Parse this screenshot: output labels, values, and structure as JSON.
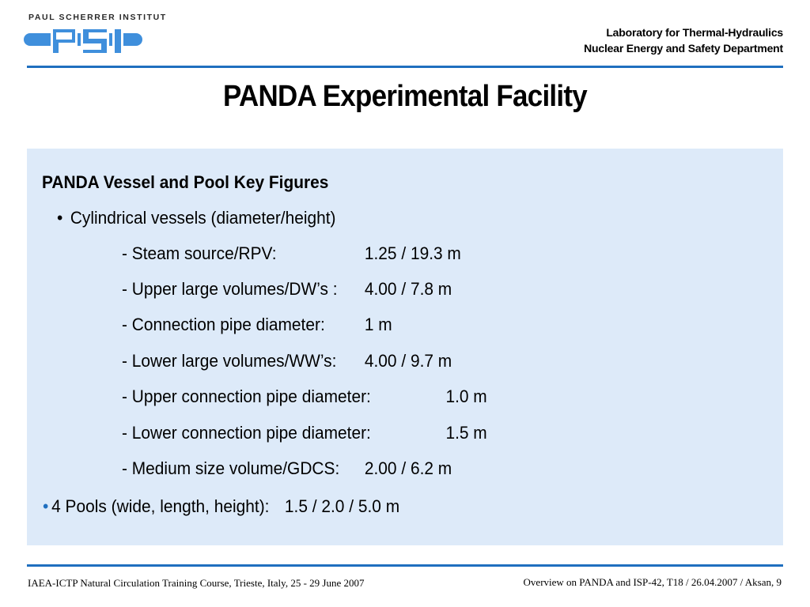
{
  "header": {
    "logo_caption": "PAUL SCHERRER INSTITUT",
    "logo_letters": "PSI",
    "lab": "Laboratory for Thermal-Hydraulics",
    "department": "Nuclear Energy and Safety Department"
  },
  "title": "PANDA Experimental Facility",
  "content": {
    "section_heading": "PANDA Vessel and Pool Key Figures",
    "bullet_marker": "•",
    "bullet_vessels": "Cylindrical vessels (diameter/height)",
    "rows": [
      {
        "label": "- Steam source/RPV:",
        "value": "1.25 / 19.3 m"
      },
      {
        "label": "- Upper large volumes/DW’s :",
        "value": "4.00 / 7.8 m"
      },
      {
        "label": "- Connection pipe diameter:",
        "value": "1 m"
      },
      {
        "label": "- Lower large volumes/WW’s:",
        "value": "4.00 / 9.7 m"
      },
      {
        "label": "- Upper connection pipe diameter:",
        "value": "1.0 m"
      },
      {
        "label": "- Lower connection pipe diameter:",
        "value": "1.5 m"
      },
      {
        "label": "- Medium size volume/GDCS:",
        "value": "2.00 / 6.2 m"
      }
    ],
    "pools_label": "4 Pools (wide, length, height):",
    "pools_value": "1.5 / 2.0 / 5.0 m"
  },
  "footer": {
    "left": "IAEA-ICTP Natural Circulation Training Course, Trieste, Italy, 25 - 29 June 2007",
    "right": "Overview on PANDA and ISP-42, T18  / 26.04.2007 / Aksan, 9"
  },
  "colors": {
    "accent": "#1f6fbf",
    "panel": "#ddeaf9",
    "logo_blue": "#3f8fdc"
  }
}
